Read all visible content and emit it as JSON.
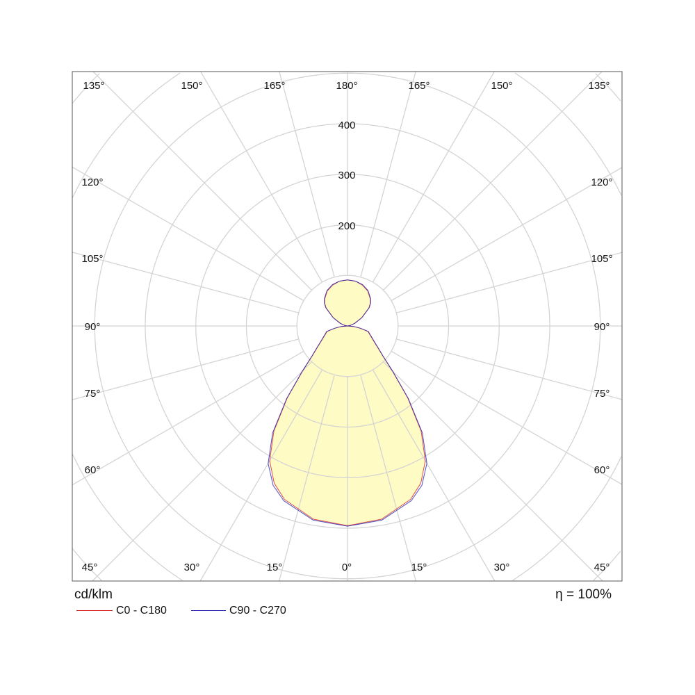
{
  "chart_data": {
    "type": "polar",
    "unit_label": "cd/klm",
    "efficiency_label": "η = 100%",
    "radial_ticks": [
      100,
      200,
      300,
      400,
      500,
      600,
      700
    ],
    "radial_tick_labels": [
      "200",
      "300",
      "400"
    ],
    "angle_tick_labels": {
      "top": [
        "135°",
        "150°",
        "165°",
        "180°",
        "165°",
        "150°",
        "135°"
      ],
      "left": [
        "120°",
        "105°",
        "90°",
        "75°",
        "60°"
      ],
      "right": [
        "120°",
        "105°",
        "90°",
        "75°",
        "60°"
      ],
      "bottom": [
        "45°",
        "30°",
        "15°",
        "0°",
        "15°",
        "30°",
        "45°"
      ]
    },
    "grid": true,
    "legend_position": "bottom-left",
    "fill_color": "#fffbc4",
    "angles": [
      0,
      10,
      20,
      25,
      30,
      35,
      40,
      45,
      50,
      55,
      60,
      65,
      70,
      75,
      80,
      85,
      90,
      100,
      110,
      120,
      130,
      135,
      140,
      150,
      160,
      170,
      180
    ],
    "series": [
      {
        "name": "C0 - C180",
        "color": "#d42020",
        "values": [
          395,
          388,
          365,
          343,
          308,
          254,
          185,
          125,
          90,
          72,
          60,
          52,
          46,
          42,
          25,
          12,
          0,
          5,
          15,
          32,
          55,
          64,
          70,
          80,
          86,
          90,
          91
        ]
      },
      {
        "name": "C90 - C270",
        "color": "#2020b0",
        "values": [
          396,
          390,
          368,
          348,
          314,
          258,
          187,
          126,
          91,
          73,
          61,
          53,
          47,
          43,
          26,
          13,
          0,
          5,
          15,
          33,
          56,
          65,
          71,
          81,
          87,
          90,
          91
        ]
      }
    ]
  }
}
